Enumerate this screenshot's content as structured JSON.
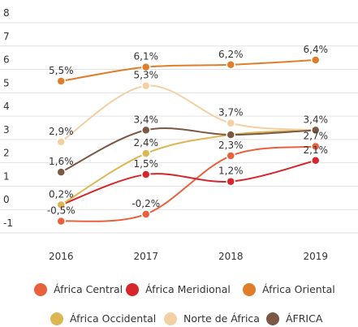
{
  "chart_data": {
    "type": "line",
    "categories": [
      "2016",
      "2017",
      "2018",
      "2019"
    ],
    "ylim": [
      -1,
      8
    ],
    "yticks": [
      -1,
      0,
      1,
      2,
      3,
      4,
      5,
      6,
      7,
      8
    ],
    "grid": true,
    "legend": "bottom",
    "series": [
      {
        "name": "África Central",
        "color": "#e8603c",
        "values": [
          -0.5,
          -0.2,
          2.3,
          2.7
        ],
        "value_labels": [
          "-0,5%",
          "-0,2%",
          "2,3%",
          "2,7%"
        ]
      },
      {
        "name": "África Meridional",
        "color": "#d7262b",
        "values": [
          0.2,
          1.5,
          1.2,
          2.1
        ],
        "value_labels": [
          null,
          "1,5%",
          "1,2%",
          "2,1%"
        ]
      },
      {
        "name": "África Oriental",
        "color": "#e07d2a",
        "values": [
          5.5,
          6.1,
          6.2,
          6.4
        ],
        "value_labels": [
          "5,5%",
          "6,1%",
          "6,2%",
          "6,4%"
        ]
      },
      {
        "name": "África Occidental",
        "color": "#dcb652",
        "values": [
          0.2,
          2.4,
          3.2,
          3.4
        ],
        "value_labels": [
          "0,2%",
          "2,4%",
          null,
          null
        ]
      },
      {
        "name": "Norte de África",
        "color": "#f2d0a4",
        "values": [
          2.9,
          5.3,
          3.7,
          3.4
        ],
        "value_labels": [
          "2,9%",
          "5,3%",
          "3,7%",
          null
        ]
      },
      {
        "name": "ÁFRICA",
        "color": "#7b5744",
        "values": [
          1.6,
          3.4,
          3.2,
          3.4
        ],
        "value_labels": [
          "1,6%",
          "3,4%",
          null,
          "3,4%"
        ]
      }
    ]
  }
}
